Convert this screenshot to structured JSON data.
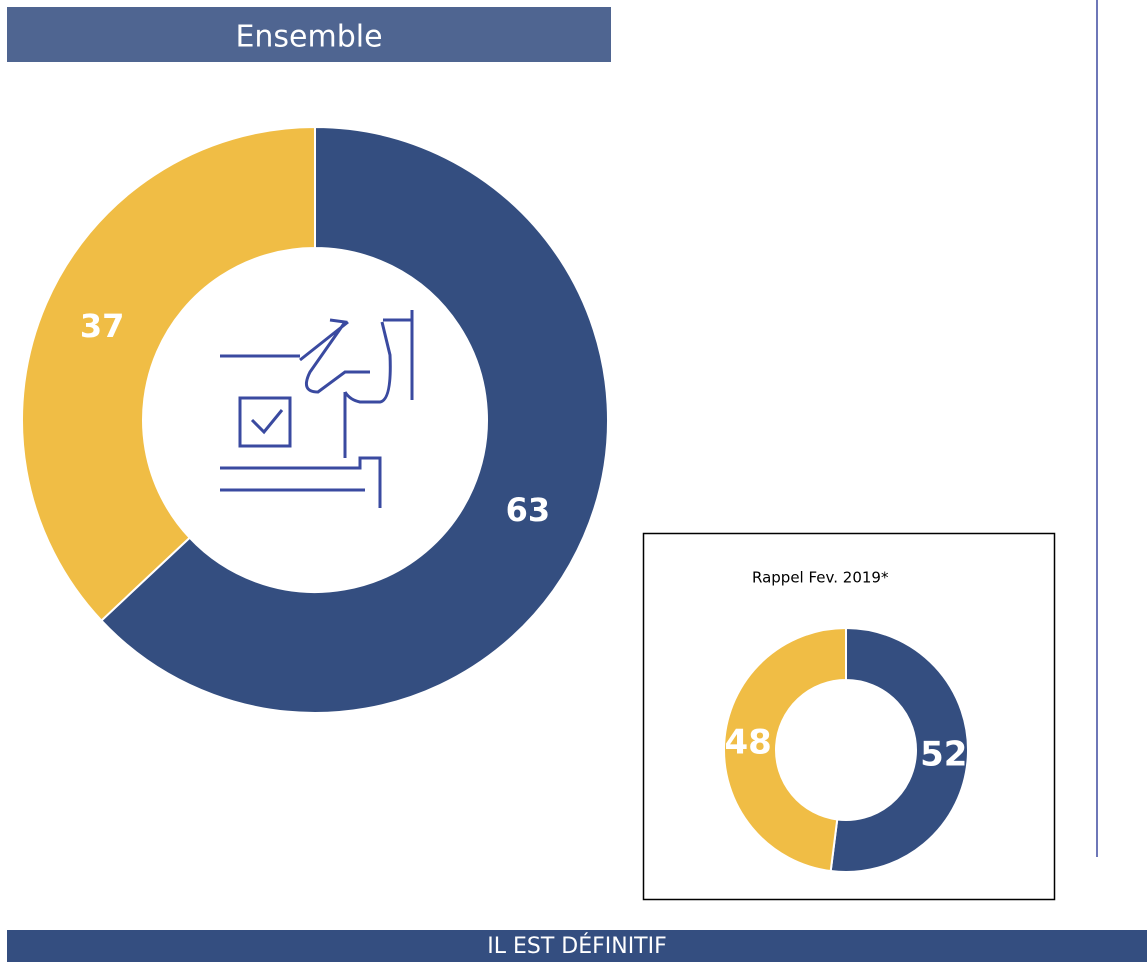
{
  "chart_data": [
    {
      "type": "donut",
      "title": "Ensemble",
      "values": [
        63,
        37
      ],
      "colors": [
        "#344e80",
        "#f0bd45"
      ]
    },
    {
      "type": "donut",
      "title": "Rappel Fev. 2019*",
      "values": [
        52,
        48
      ],
      "colors": [
        "#344e80",
        "#f0bd45"
      ]
    }
  ],
  "footer": "IL EST DÉFINITIF"
}
